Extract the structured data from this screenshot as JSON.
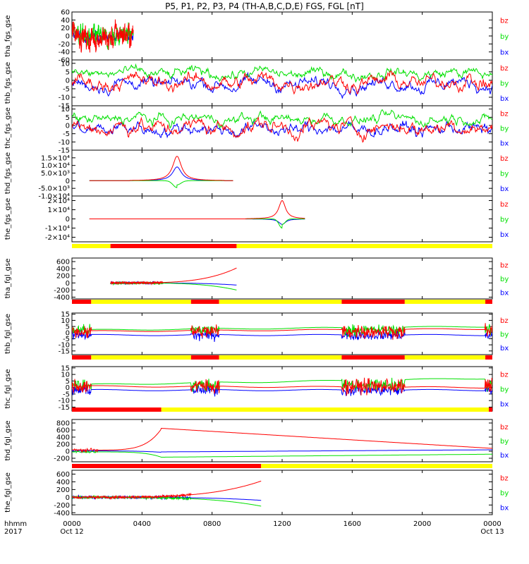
{
  "title": "P5, P1, P2, P3, P4 (TH-A,B,C,D,E) FGS, FGL [nT]",
  "colors": {
    "bx": "#0000ff",
    "by": "#00e000",
    "bz": "#ff0000",
    "bar_on": "#ff0000",
    "bar_off": "#ffff00"
  },
  "legend": [
    "bz",
    "by",
    "bx"
  ],
  "xaxis": {
    "row1_left": "hhmm",
    "row2_left": "2017",
    "ticks": [
      "0000",
      "0400",
      "0800",
      "1200",
      "1600",
      "2000",
      "0000"
    ],
    "tick_hours": [
      0,
      4,
      8,
      12,
      16,
      20,
      24
    ],
    "date_start": "Oct 12",
    "date_end": "Oct 13"
  },
  "chart_data": {
    "type": "line",
    "x_units": "hours since 2017-10-12 00:00",
    "x_range": [
      0,
      24
    ],
    "series_names": [
      "bx",
      "by",
      "bz"
    ],
    "panels": [
      {
        "id": "tha_fgs",
        "label": "tha_fgs_gse",
        "ylim": [
          -60,
          60
        ],
        "ticks": [
          60,
          40,
          20,
          0,
          -20,
          -40,
          -60
        ],
        "t_range": [
          0,
          3.5
        ],
        "style": "noisy",
        "bx": [
          0,
          8
        ],
        "by": [
          0,
          18
        ],
        "bz": [
          0,
          22
        ]
      },
      {
        "id": "thb_fgs",
        "label": "thb_fgs_gse",
        "ylim": [
          -15,
          12
        ],
        "ticks": [
          10,
          5,
          0,
          -5,
          -10,
          -15
        ],
        "t_range": [
          0,
          24
        ],
        "style": "noisy",
        "bx": [
          -2,
          3
        ],
        "by": [
          4,
          2.5
        ],
        "bz": [
          -1,
          3.5
        ]
      },
      {
        "id": "thc_fgs",
        "label": "thc_fgs_gse",
        "ylim": [
          -15,
          12
        ],
        "ticks": [
          10,
          5,
          0,
          -5,
          -10,
          -15
        ],
        "t_range": [
          0,
          24
        ],
        "style": "noisy",
        "bx": [
          -2,
          3
        ],
        "by": [
          4,
          2.5
        ],
        "bz": [
          -1,
          3.5
        ]
      },
      {
        "id": "thd_fgs",
        "label": "thd_fgs_gse",
        "ylim": [
          -10000,
          20000
        ],
        "ticks": [
          15000,
          10000,
          5000,
          0,
          -5000,
          -10000
        ],
        "tick_labels": [
          "1.5×10⁴",
          "1.0×10⁴",
          "5.0×10³",
          "0",
          "-5.0×10³",
          "-1.0×10⁴"
        ],
        "t_range": [
          1,
          9.2
        ],
        "style": "peak",
        "center": 6.0,
        "width": 0.45,
        "bz": 16000,
        "bx": 9000,
        "by": -4500
      },
      {
        "id": "the_fgs",
        "label": "the_fgs_gse",
        "ylim": [
          -25000,
          25000
        ],
        "ticks": [
          20000,
          10000,
          0,
          -10000,
          -20000
        ],
        "tick_labels": [
          "2×10⁴",
          "1×10⁴",
          "0",
          "-1×10⁴",
          "-2×10⁴"
        ],
        "t_range": [
          1,
          13.3
        ],
        "style": "peak",
        "center": 12.0,
        "width": 0.35,
        "bz": 20000,
        "bx": -6000,
        "by": -10000
      },
      {
        "id": "tha_fgl",
        "label": "tha_fgl_gse",
        "ylim": [
          -450,
          700
        ],
        "ticks": [
          600,
          400,
          200,
          0,
          -200,
          -400
        ],
        "t_range": [
          2.2,
          9.4
        ],
        "style": "ramp",
        "bz_end": 420,
        "by_end": -200,
        "bx_end": -60,
        "noise_until": 5.2
      },
      {
        "id": "thb_fgl",
        "label": "thb_fgl_gse",
        "ylim": [
          -18,
          16
        ],
        "ticks": [
          15,
          10,
          5,
          0,
          -5,
          -10,
          -15
        ],
        "t_range": [
          0,
          24
        ],
        "style": "bursts",
        "bursts": [
          [
            0,
            1.1
          ],
          [
            6.8,
            8.4
          ],
          [
            15.4,
            19.0
          ],
          [
            23.6,
            24
          ]
        ],
        "bz_end": 3,
        "by_end": 5,
        "bx_end": -2
      },
      {
        "id": "thc_fgl",
        "label": "thc_fgl_gse",
        "ylim": [
          -18,
          16
        ],
        "ticks": [
          15,
          10,
          5,
          0,
          -5,
          -10,
          -15
        ],
        "t_range": [
          0,
          24
        ],
        "style": "bursts",
        "bursts": [
          [
            0,
            1.1
          ],
          [
            6.8,
            8.4
          ],
          [
            15.4,
            19.0
          ],
          [
            23.6,
            24
          ]
        ],
        "bz_end": 0,
        "by_end": 7,
        "bx_end": -2
      },
      {
        "id": "thd_fgl",
        "label": "thd_fgl_gse",
        "ylim": [
          -300,
          900
        ],
        "ticks": [
          800,
          600,
          400,
          200,
          0,
          -200
        ],
        "t_range": [
          0,
          24
        ],
        "style": "thd",
        "peak_t": 5.1,
        "bz_peak": 650,
        "bz_end": 80,
        "by_min": -170
      },
      {
        "id": "the_fgl",
        "label": "the_fgl_gse",
        "ylim": [
          -450,
          700
        ],
        "ticks": [
          600,
          400,
          200,
          0,
          -200,
          -400
        ],
        "t_range": [
          0,
          10.8
        ],
        "style": "ramp",
        "bz_end": 420,
        "by_end": -230,
        "bx_end": -80,
        "noise_until": 6.8
      }
    ],
    "mode_bars": [
      {
        "segments": [
          [
            "off",
            0,
            2.2
          ],
          [
            "on",
            2.2,
            9.4
          ],
          [
            "off",
            9.4,
            24
          ]
        ]
      },
      {
        "segments": [
          [
            "on",
            0,
            1.1
          ],
          [
            "off",
            1.1,
            6.8
          ],
          [
            "on",
            6.8,
            8.4
          ],
          [
            "off",
            8.4,
            15.4
          ],
          [
            "on",
            15.4,
            19.0
          ],
          [
            "off",
            19.0,
            23.6
          ],
          [
            "on",
            23.6,
            24
          ]
        ]
      },
      {
        "segments": [
          [
            "on",
            0,
            1.1
          ],
          [
            "off",
            1.1,
            6.8
          ],
          [
            "on",
            6.8,
            8.4
          ],
          [
            "off",
            8.4,
            15.4
          ],
          [
            "on",
            15.4,
            19.0
          ],
          [
            "off",
            19.0,
            23.6
          ],
          [
            "on",
            23.6,
            24
          ]
        ]
      },
      {
        "segments": [
          [
            "on",
            0,
            5.1
          ],
          [
            "off",
            5.1,
            23.8
          ],
          [
            "on",
            23.8,
            24
          ]
        ]
      },
      {
        "segments": [
          [
            "on",
            0,
            10.8
          ],
          [
            "off",
            10.8,
            24
          ]
        ]
      }
    ]
  }
}
